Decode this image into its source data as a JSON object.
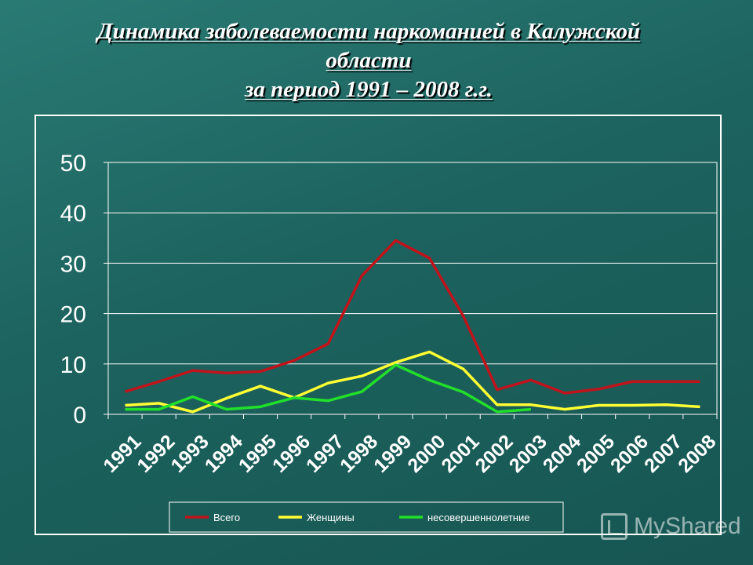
{
  "chart_data": {
    "type": "line",
    "title_lines": [
      "Динамика заболеваемости наркоманией в Калужской",
      "области",
      "за период 1991 – 2008 г.г."
    ],
    "categories": [
      "1991",
      "1992",
      "1993",
      "1994",
      "1995",
      "1996",
      "1997",
      "1998",
      "1999",
      "2000",
      "2001",
      "2002",
      "2003",
      "2004",
      "2005",
      "2006",
      "2007",
      "2008"
    ],
    "y_ticks": [
      "0",
      "10",
      "20",
      "30",
      "40",
      "50"
    ],
    "ylim": [
      0,
      50
    ],
    "grid": true,
    "legend_position": "bottom",
    "series": [
      {
        "name": "Всего",
        "color": "#c0141c",
        "values": [
          4.5,
          6.5,
          8.7,
          8.2,
          8.5,
          10.7,
          14,
          27.5,
          34.5,
          31,
          19.5,
          4.9,
          6.8,
          4.2,
          5,
          6.5,
          6.5,
          6.5
        ]
      },
      {
        "name": "Женщины",
        "color": "#ffff33",
        "values": [
          1.8,
          2.2,
          0.5,
          3.2,
          5.6,
          3.3,
          6.2,
          7.6,
          10.3,
          12.4,
          9,
          1.9,
          1.9,
          1,
          1.8,
          1.8,
          1.9,
          1.5
        ]
      },
      {
        "name": "несовершеннолетние",
        "color": "#22e02a",
        "values": [
          1,
          1,
          3.5,
          1,
          1.5,
          3.3,
          2.7,
          4.5,
          9.8,
          6.8,
          4.4,
          0.5,
          1,
          null,
          null,
          null,
          null,
          null
        ]
      }
    ]
  },
  "watermark": "MyShared"
}
